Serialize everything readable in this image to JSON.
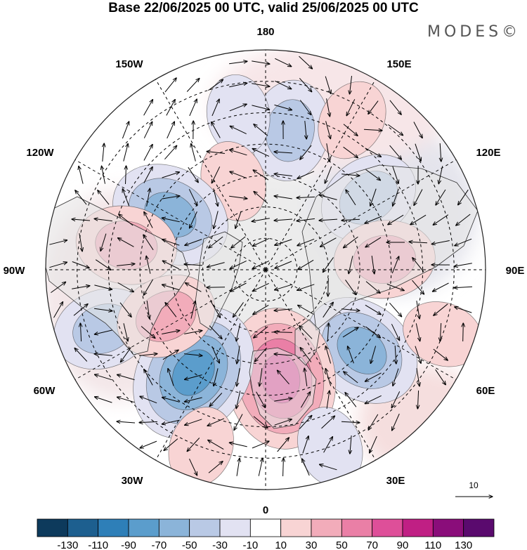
{
  "title": "Base 22/06/2025 00 UTC, valid 25/06/2025 00 UTC",
  "logo": "MODES©",
  "longitude_labels": {
    "n180": "180",
    "w150": "150W",
    "e150": "150E",
    "w120": "120W",
    "e120": "120E",
    "w90": "90W",
    "e90": "90E",
    "w60": "60W",
    "e60": "60E",
    "w30": "30W",
    "e30": "30E",
    "zero": "0"
  },
  "vector_scale": {
    "label": "10"
  },
  "colorbar": {
    "ticks": [
      "-130",
      "-110",
      "-90",
      "-70",
      "-50",
      "-30",
      "-10",
      "10",
      "30",
      "50",
      "70",
      "90",
      "110",
      "130"
    ],
    "colors": [
      "#0d3a5c",
      "#1d5f8f",
      "#2e7fb8",
      "#5b9dcc",
      "#8bb4d9",
      "#b9c9e5",
      "#e2e2f2",
      "#ffffff",
      "#f8d4d4",
      "#f2acba",
      "#ea7fa6",
      "#de4f99",
      "#c01f84",
      "#8a0d7a",
      "#5a0a6e"
    ]
  },
  "anomaly_centers": [
    {
      "kind": "low",
      "value": -50,
      "lon": 170,
      "lat": 45
    },
    {
      "kind": "low",
      "value": -30,
      "lon": -170,
      "lat": 40
    },
    {
      "kind": "high",
      "value": 30,
      "lon": -160,
      "lat": 60
    },
    {
      "kind": "low",
      "value": -70,
      "lon": -120,
      "lat": 55
    },
    {
      "kind": "high",
      "value": 50,
      "lon": -100,
      "lat": 45
    },
    {
      "kind": "low",
      "value": -50,
      "lon": 125,
      "lat": 50
    },
    {
      "kind": "high",
      "value": 50,
      "lon": 95,
      "lat": 52
    },
    {
      "kind": "low",
      "value": -70,
      "lon": 50,
      "lat": 50
    },
    {
      "kind": "high",
      "value": 90,
      "lon": 8,
      "lat": 55
    },
    {
      "kind": "low",
      "value": -90,
      "lon": -35,
      "lat": 50
    },
    {
      "kind": "low",
      "value": -50,
      "lon": -70,
      "lat": 35
    },
    {
      "kind": "high",
      "value": 50,
      "lon": -65,
      "lat": 55
    },
    {
      "kind": "high",
      "value": 30,
      "lon": -20,
      "lat": 30
    },
    {
      "kind": "low",
      "value": -30,
      "lon": 20,
      "lat": 30
    },
    {
      "kind": "high",
      "value": 30,
      "lon": 150,
      "lat": 35
    },
    {
      "kind": "high",
      "value": 30,
      "lon": 70,
      "lat": 30
    }
  ]
}
